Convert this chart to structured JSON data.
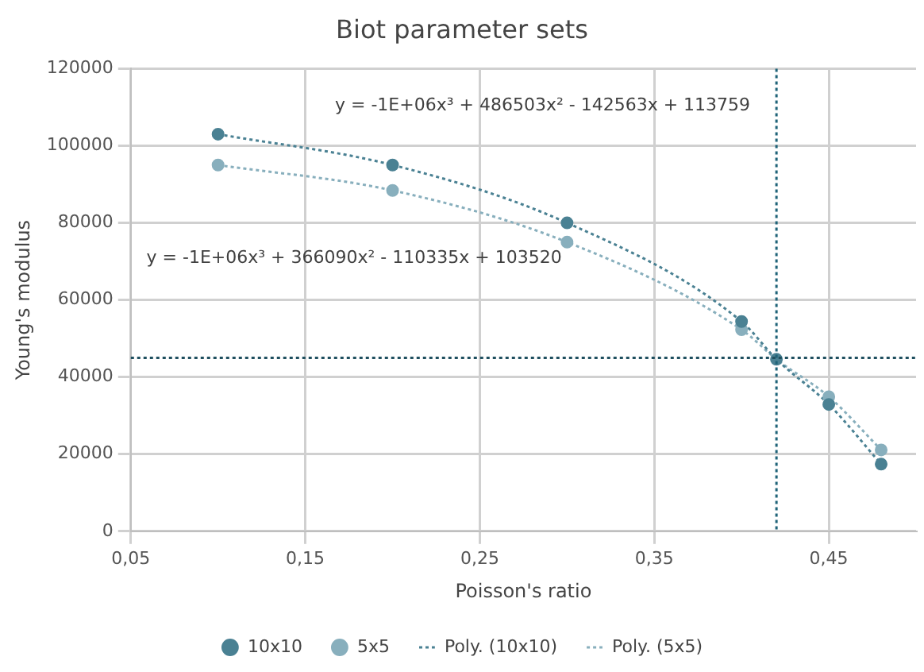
{
  "chart_data": {
    "type": "scatter",
    "title": "Biot parameter sets",
    "xlabel": "Poisson's ratio",
    "ylabel": "Young's modulus",
    "x": [
      0.1,
      0.2,
      0.3,
      0.4,
      0.42,
      0.45,
      0.48
    ],
    "series": [
      {
        "name": "10x10",
        "color": "#4a8193",
        "values": [
          103000,
          95000,
          80000,
          54400,
          44600,
          32900,
          17400
        ],
        "marker": "circle"
      },
      {
        "name": "5x5",
        "color": "#88afbd",
        "values": [
          95000,
          88400,
          75000,
          52300,
          null,
          34900,
          21100
        ],
        "marker": "circle"
      },
      {
        "name": "Poly. (10x10)",
        "type": "line",
        "color": "#4a8193",
        "x": [
          0.1,
          0.2,
          0.3,
          0.4,
          0.42,
          0.45,
          0.48
        ],
        "values": [
          103000,
          95000,
          80000,
          54400,
          44600,
          32900,
          17400
        ],
        "marker": "none",
        "line_style": "dotted"
      },
      {
        "name": "Poly. (5x5)",
        "type": "line",
        "color": "#88afbd",
        "x": [
          0.1,
          0.2,
          0.3,
          0.4,
          0.42,
          0.45,
          0.48
        ],
        "values": [
          95000,
          88400,
          75000,
          52300,
          44600,
          34900,
          21100
        ],
        "marker": "none",
        "line_style": "dotted"
      }
    ],
    "xlim": [
      0.05,
      0.5
    ],
    "xticks": [
      {
        "value": 0.05,
        "label": "0,05"
      },
      {
        "value": 0.15,
        "label": "0,15"
      },
      {
        "value": 0.25,
        "label": "0,25"
      },
      {
        "value": 0.35,
        "label": "0,35"
      },
      {
        "value": 0.45,
        "label": "0,45"
      }
    ],
    "ylim": [
      0,
      120000
    ],
    "yticks": [
      0,
      20000,
      40000,
      60000,
      80000,
      100000,
      120000
    ],
    "grid": true,
    "legend": "bottom",
    "ref_lines": [
      {
        "axis": "x",
        "value": 0.42,
        "color": "#1f6378",
        "line_style": "dotted"
      },
      {
        "axis": "y",
        "value": 45000,
        "color": "#1f4f5f",
        "line_style": "dotted"
      }
    ],
    "annotations": [
      "y = -1E+06x³ + 486503x² - 142563x + 113759",
      "y = -1E+06x³ + 366090x² - 110335x + 103520"
    ]
  }
}
